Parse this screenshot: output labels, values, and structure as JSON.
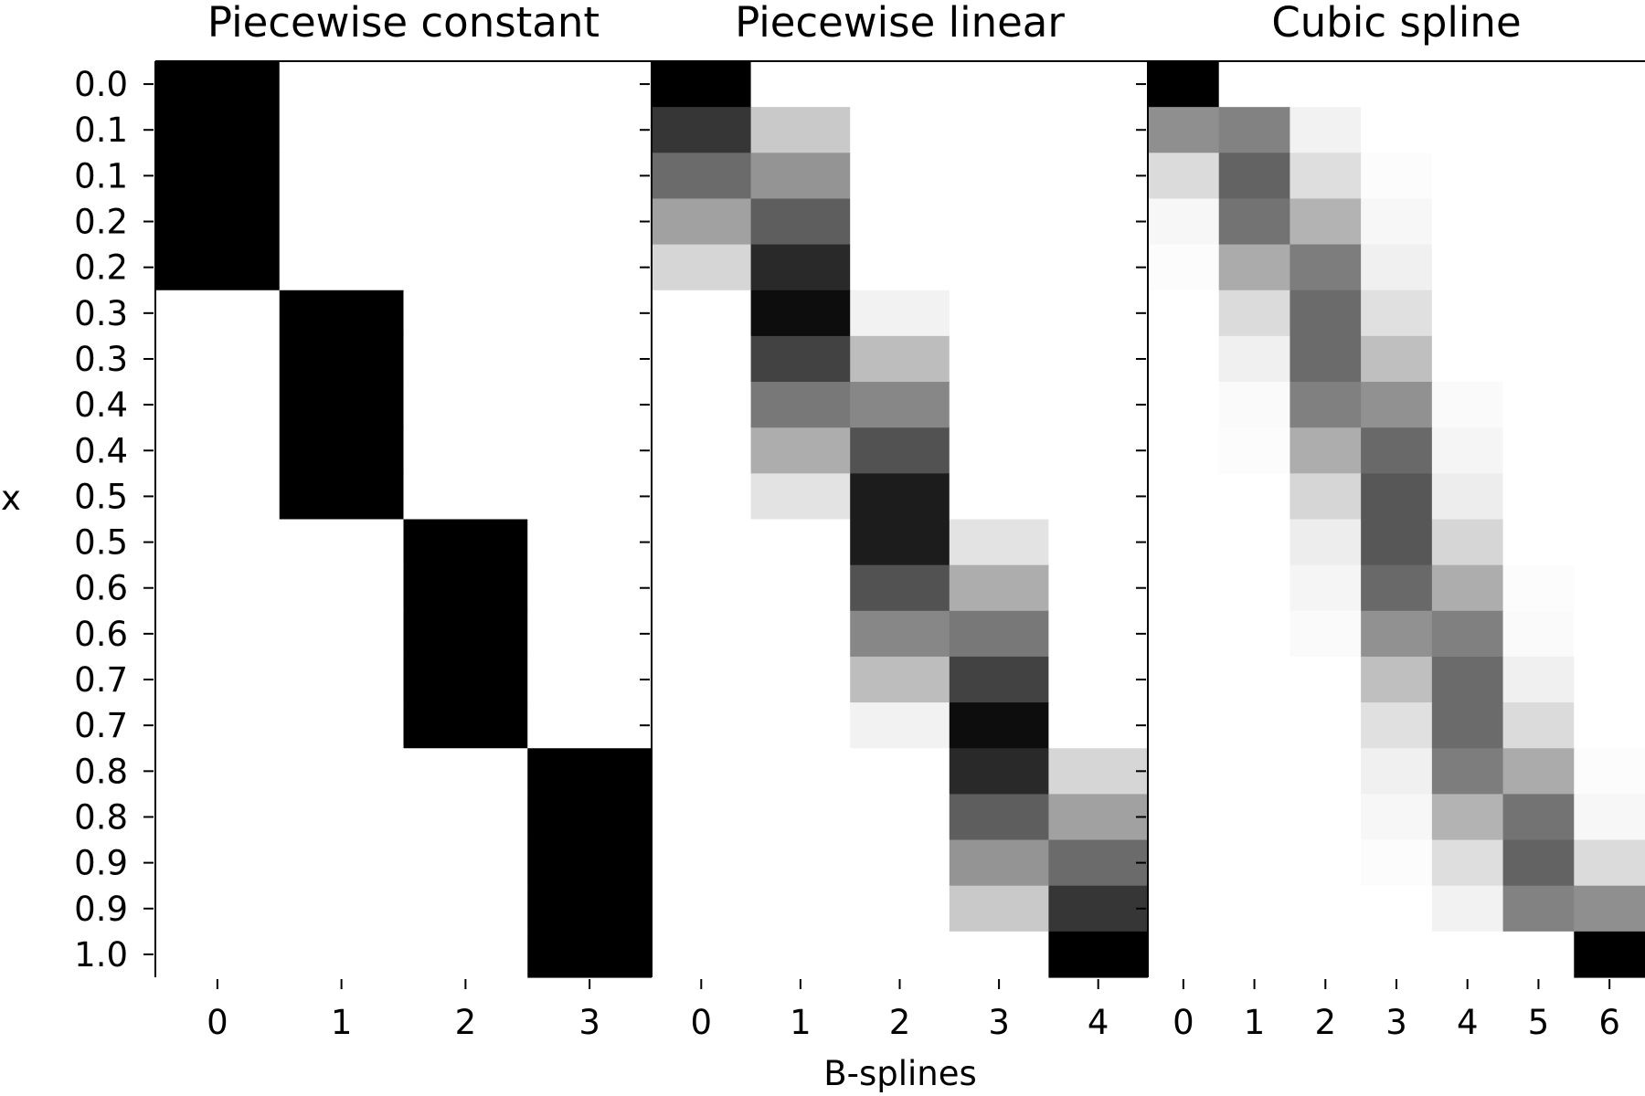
{
  "chart_data": {
    "type": "heatmap",
    "colormap": "gray_r",
    "value_range": [
      0,
      1
    ],
    "xlabel": "B-splines",
    "ylabel": "x",
    "y_tick_labels": [
      "0.0",
      "0.1",
      "0.1",
      "0.2",
      "0.2",
      "0.3",
      "0.3",
      "0.4",
      "0.4",
      "0.5",
      "0.5",
      "0.6",
      "0.6",
      "0.7",
      "0.7",
      "0.8",
      "0.8",
      "0.9",
      "0.9",
      "1.0"
    ],
    "panels": [
      {
        "title": "Piecewise constant",
        "columns": [
          "0",
          "1",
          "2",
          "3"
        ],
        "values": [
          [
            1,
            0,
            0,
            0
          ],
          [
            1,
            0,
            0,
            0
          ],
          [
            1,
            0,
            0,
            0
          ],
          [
            1,
            0,
            0,
            0
          ],
          [
            1,
            0,
            0,
            0
          ],
          [
            0,
            1,
            0,
            0
          ],
          [
            0,
            1,
            0,
            0
          ],
          [
            0,
            1,
            0,
            0
          ],
          [
            0,
            1,
            0,
            0
          ],
          [
            0,
            1,
            0,
            0
          ],
          [
            0,
            0,
            1,
            0
          ],
          [
            0,
            0,
            1,
            0
          ],
          [
            0,
            0,
            1,
            0
          ],
          [
            0,
            0,
            1,
            0
          ],
          [
            0,
            0,
            1,
            0
          ],
          [
            0,
            0,
            0,
            1
          ],
          [
            0,
            0,
            0,
            1
          ],
          [
            0,
            0,
            0,
            1
          ],
          [
            0,
            0,
            0,
            1
          ],
          [
            0,
            0,
            0,
            1
          ]
        ]
      },
      {
        "title": "Piecewise linear",
        "columns": [
          "0",
          "1",
          "2",
          "3",
          "4"
        ],
        "values": [
          [
            1.0,
            0.0,
            0.0,
            0.0,
            0.0
          ],
          [
            0.79,
            0.21,
            0.0,
            0.0,
            0.0
          ],
          [
            0.58,
            0.42,
            0.0,
            0.0,
            0.0
          ],
          [
            0.37,
            0.63,
            0.0,
            0.0,
            0.0
          ],
          [
            0.16,
            0.84,
            0.0,
            0.0,
            0.0
          ],
          [
            0.0,
            0.95,
            0.05,
            0.0,
            0.0
          ],
          [
            0.0,
            0.74,
            0.26,
            0.0,
            0.0
          ],
          [
            0.0,
            0.53,
            0.47,
            0.0,
            0.0
          ],
          [
            0.0,
            0.32,
            0.68,
            0.0,
            0.0
          ],
          [
            0.0,
            0.11,
            0.89,
            0.0,
            0.0
          ],
          [
            0.0,
            0.0,
            0.89,
            0.11,
            0.0
          ],
          [
            0.0,
            0.0,
            0.68,
            0.32,
            0.0
          ],
          [
            0.0,
            0.0,
            0.47,
            0.53,
            0.0
          ],
          [
            0.0,
            0.0,
            0.26,
            0.74,
            0.0
          ],
          [
            0.0,
            0.0,
            0.05,
            0.95,
            0.0
          ],
          [
            0.0,
            0.0,
            0.0,
            0.84,
            0.16
          ],
          [
            0.0,
            0.0,
            0.0,
            0.63,
            0.37
          ],
          [
            0.0,
            0.0,
            0.0,
            0.42,
            0.58
          ],
          [
            0.0,
            0.0,
            0.0,
            0.21,
            0.79
          ],
          [
            0.0,
            0.0,
            0.0,
            0.0,
            1.0
          ]
        ]
      },
      {
        "title": "Cubic spline",
        "columns": [
          "0",
          "1",
          "2",
          "3",
          "4",
          "5",
          "6"
        ],
        "values": [
          [
            1.0,
            0.0,
            0.0,
            0.0,
            0.0,
            0.0,
            0.0
          ],
          [
            0.44,
            0.49,
            0.05,
            0.0,
            0.0,
            0.0,
            0.0
          ],
          [
            0.14,
            0.61,
            0.13,
            0.01,
            0.0,
            0.0,
            0.0
          ],
          [
            0.03,
            0.55,
            0.3,
            0.03,
            0.0,
            0.0,
            0.0
          ],
          [
            0.01,
            0.33,
            0.51,
            0.06,
            0.0,
            0.0,
            0.0
          ],
          [
            0.0,
            0.14,
            0.58,
            0.12,
            0.0,
            0.0,
            0.0
          ],
          [
            0.0,
            0.06,
            0.58,
            0.25,
            0.0,
            0.0,
            0.0
          ],
          [
            0.0,
            0.02,
            0.5,
            0.43,
            0.02,
            0.0,
            0.0
          ],
          [
            0.0,
            0.01,
            0.32,
            0.59,
            0.04,
            0.0,
            0.0
          ],
          [
            0.0,
            0.0,
            0.16,
            0.66,
            0.07,
            0.0,
            0.0
          ],
          [
            0.0,
            0.0,
            0.07,
            0.66,
            0.16,
            0.0,
            0.0
          ],
          [
            0.0,
            0.0,
            0.04,
            0.59,
            0.32,
            0.01,
            0.0
          ],
          [
            0.0,
            0.0,
            0.02,
            0.43,
            0.5,
            0.02,
            0.0
          ],
          [
            0.0,
            0.0,
            0.0,
            0.25,
            0.58,
            0.06,
            0.0
          ],
          [
            0.0,
            0.0,
            0.0,
            0.12,
            0.58,
            0.14,
            0.0
          ],
          [
            0.0,
            0.0,
            0.0,
            0.06,
            0.51,
            0.33,
            0.01
          ],
          [
            0.0,
            0.0,
            0.0,
            0.03,
            0.3,
            0.55,
            0.03
          ],
          [
            0.0,
            0.0,
            0.0,
            0.01,
            0.13,
            0.61,
            0.14
          ],
          [
            0.0,
            0.0,
            0.0,
            0.0,
            0.05,
            0.49,
            0.44
          ],
          [
            0.0,
            0.0,
            0.0,
            0.0,
            0.0,
            0.0,
            1.0
          ]
        ]
      }
    ]
  }
}
